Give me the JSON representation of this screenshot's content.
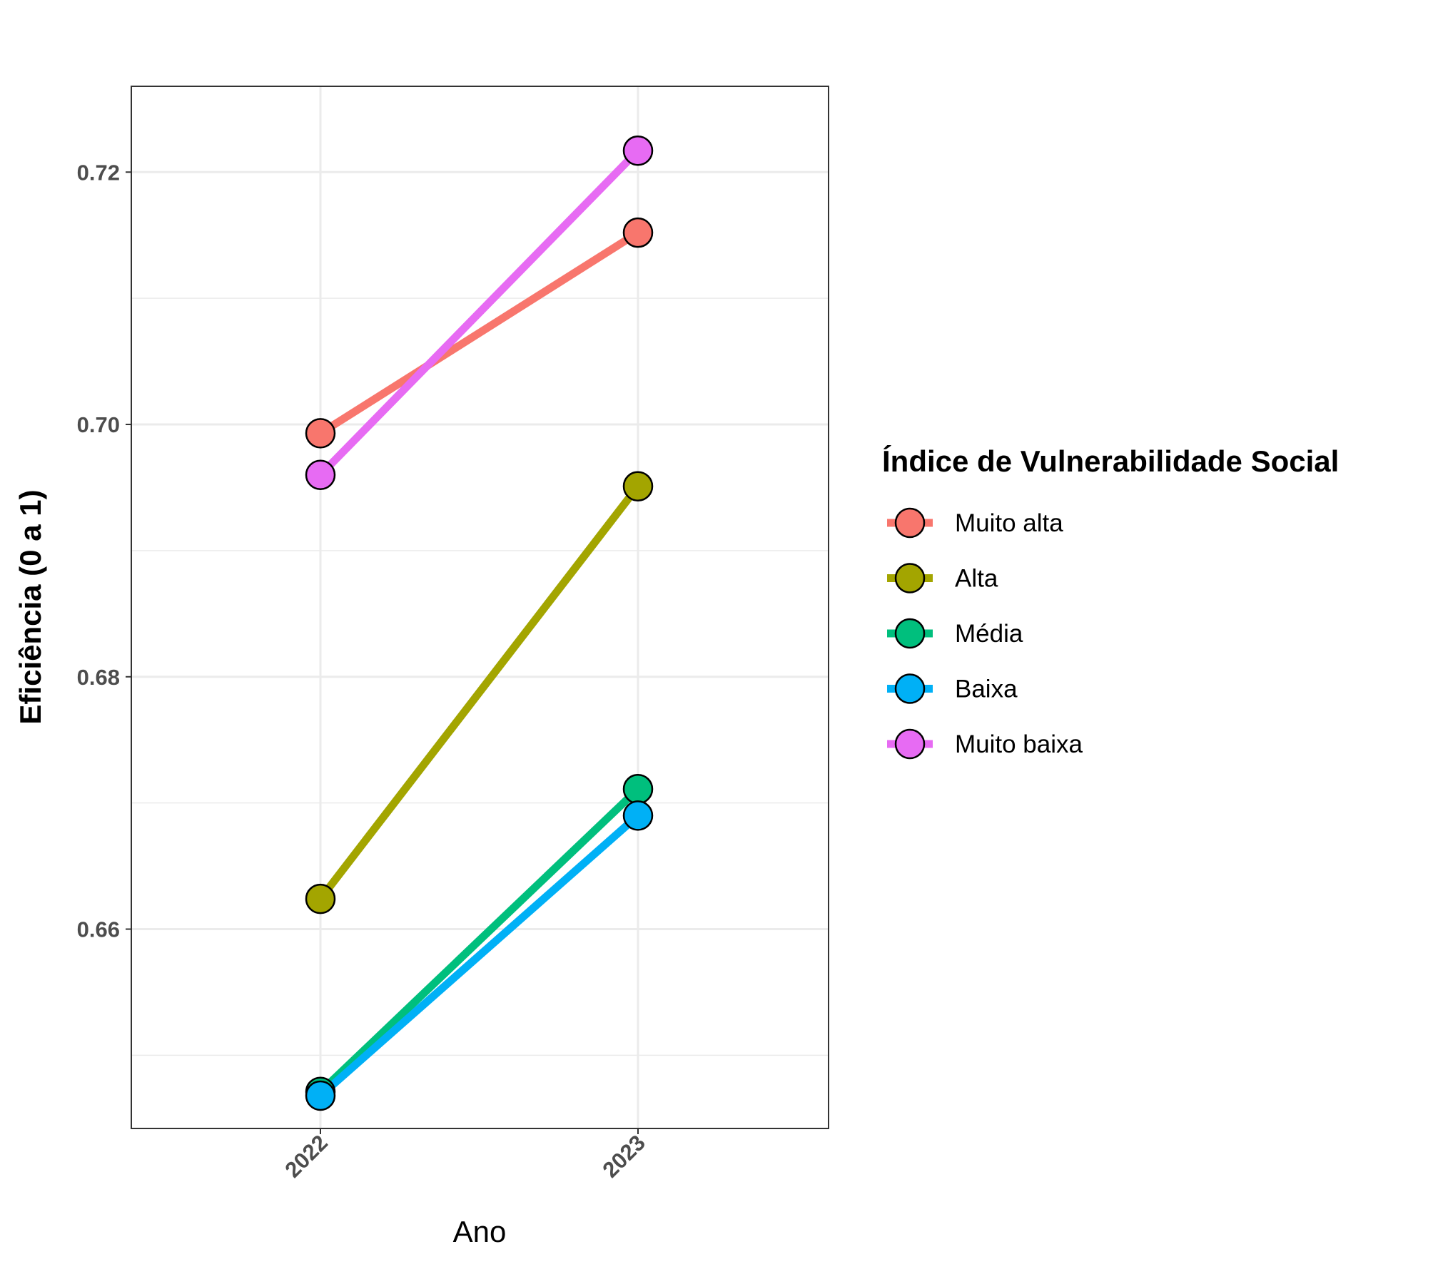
{
  "chart_data": {
    "type": "line",
    "x": [
      "2022",
      "2023"
    ],
    "xlabel": "Ano",
    "ylabel": "Eficiência (0 a 1)",
    "ylim": [
      0.6442,
      0.7268
    ],
    "yticks": [
      "0.66",
      "0.68",
      "0.70",
      "0.72"
    ],
    "ytick_values": [
      0.66,
      0.68,
      0.7,
      0.72
    ],
    "grid": true,
    "legend": {
      "title": "Índice de Vulnerabilidade Social",
      "placement": "right"
    },
    "series": [
      {
        "name": "Muito alta",
        "color": "#F8766D",
        "values": [
          0.6993,
          0.7152
        ]
      },
      {
        "name": "Alta",
        "color": "#A3A500",
        "values": [
          0.6624,
          0.6951
        ]
      },
      {
        "name": "Média",
        "color": "#00BF7D",
        "values": [
          0.6471,
          0.6711
        ]
      },
      {
        "name": "Baixa",
        "color": "#00B0F6",
        "values": [
          0.6468,
          0.669
        ]
      },
      {
        "name": "Muito baixa",
        "color": "#E76BF3",
        "values": [
          0.696,
          0.7217
        ]
      }
    ]
  }
}
